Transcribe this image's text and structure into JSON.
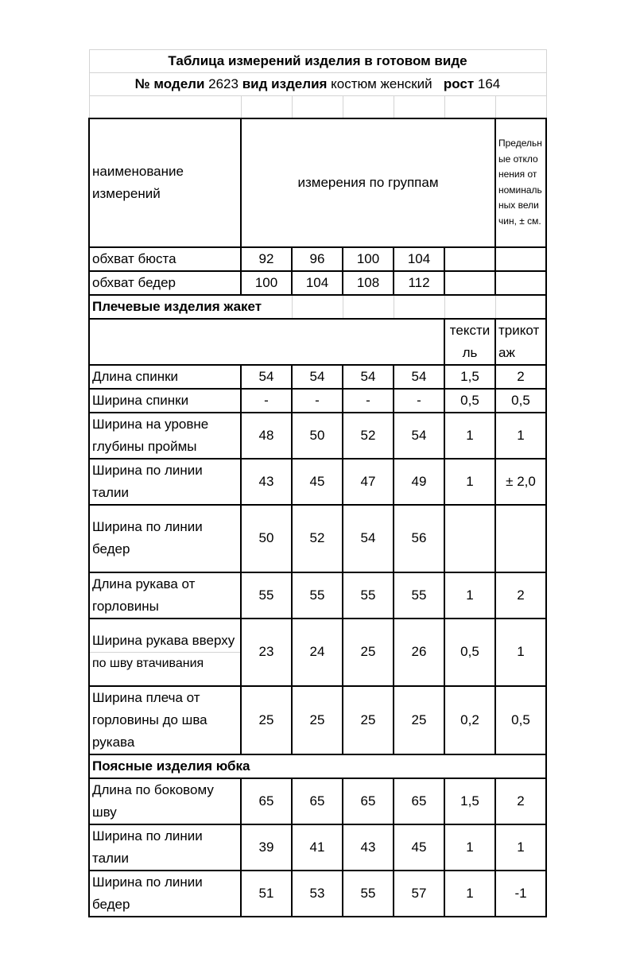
{
  "title": "Таблица измерений изделия в готовом виде",
  "model_line": {
    "model_label": "№ модели",
    "model_value": "2623",
    "type_label": "вид изделия",
    "type_value": "костюм женский",
    "height_label": "рост",
    "height_value": "164"
  },
  "header": {
    "name_col": "наименование измерений",
    "groups_col": "измерения по группам",
    "tolerance_col": "Предельные отклонения от номинальных величин, ± см."
  },
  "base_rows": [
    {
      "name": "обхват бюста",
      "values": [
        "92",
        "96",
        "100",
        "104",
        "",
        ""
      ]
    },
    {
      "name": "обхват бедер",
      "values": [
        "100",
        "104",
        "108",
        "112",
        "",
        ""
      ]
    }
  ],
  "sections": [
    {
      "title": "Плечевые изделия жакет",
      "tolerance_headers": [
        "текстиль",
        "трикотаж"
      ],
      "rows": [
        {
          "name": "Длина спинки",
          "values": [
            "54",
            "54",
            "54",
            "54",
            "1,5",
            "2"
          ]
        },
        {
          "name": "Ширина спинки",
          "values": [
            "-",
            "-",
            "-",
            "-",
            "0,5",
            "0,5"
          ]
        },
        {
          "name": "Ширина на уровне глубины проймы",
          "values": [
            "48",
            "50",
            "52",
            "54",
            "1",
            "1"
          ]
        },
        {
          "name": "Ширина по линии талии",
          "values": [
            "43",
            "45",
            "47",
            "49",
            "1",
            "± 2,0"
          ]
        },
        {
          "name": "Ширина по линии бедер",
          "values": [
            "50",
            "52",
            "54",
            "56",
            "",
            ""
          ]
        },
        {
          "name": "Длина рукава от горловины",
          "values": [
            "55",
            "55",
            "55",
            "55",
            "1",
            "2"
          ]
        },
        {
          "name": "Ширина рукава вверху",
          "note": "по шву втачивания",
          "values": [
            "23",
            "24",
            "25",
            "26",
            "0,5",
            "1"
          ]
        },
        {
          "name": "Ширина плеча от горловины до шва рукава",
          "values": [
            "25",
            "25",
            "25",
            "25",
            "0,2",
            "0,5"
          ]
        }
      ]
    },
    {
      "title": "Поясные изделия юбка",
      "rows": [
        {
          "name": "Длина по боковому шву",
          "values": [
            "65",
            "65",
            "65",
            "65",
            "1,5",
            "2"
          ]
        },
        {
          "name": "Ширина по линии талии",
          "values": [
            "39",
            "41",
            "43",
            "45",
            "1",
            "1"
          ]
        },
        {
          "name": "Ширина по линии бедер",
          "values": [
            "51",
            "53",
            "55",
            "57",
            "1",
            "-1"
          ]
        }
      ]
    }
  ]
}
